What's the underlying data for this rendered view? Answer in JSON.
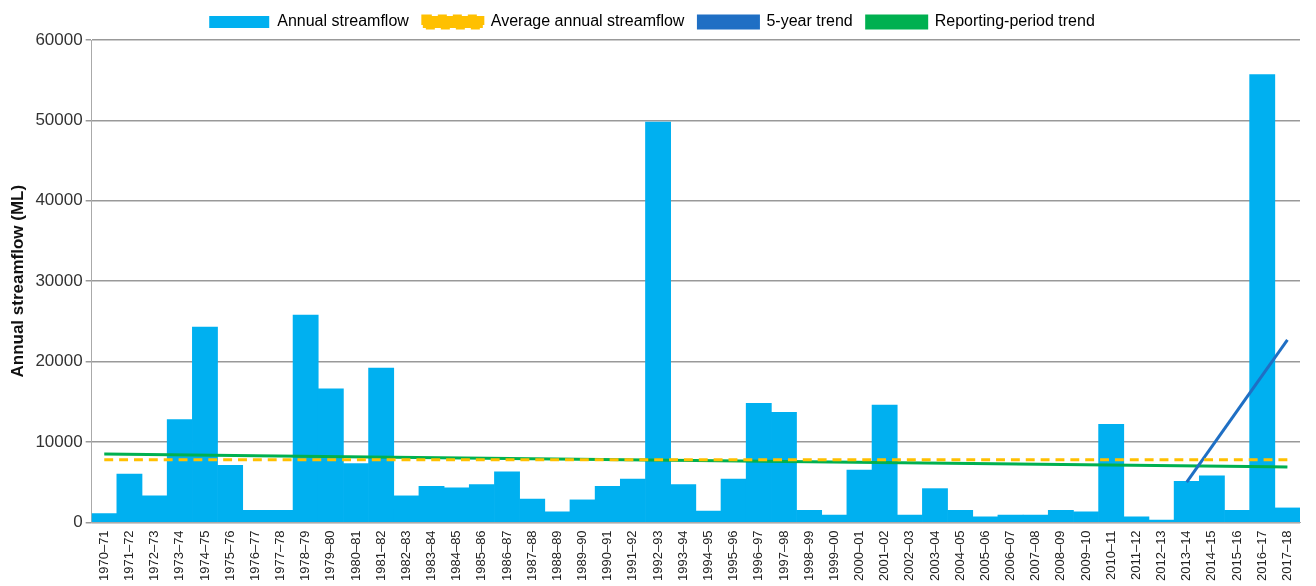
{
  "chart_data": {
    "type": "bar",
    "ylabel": "Annual streamflow (ML)",
    "categories": [
      "1970–71",
      "1971–72",
      "1972–73",
      "1973–74",
      "1974–75",
      "1975–76",
      "1976–77",
      "1977–78",
      "1978–79",
      "1979–80",
      "1980–81",
      "1981–82",
      "1982–83",
      "1983–84",
      "1984–85",
      "1985–86",
      "1986–87",
      "1987–88",
      "1988–89",
      "1989–90",
      "1990–91",
      "1991–92",
      "1992–93",
      "1993–94",
      "1994–95",
      "1995–96",
      "1996–97",
      "1997–98",
      "1998–99",
      "1999–00",
      "2000–01",
      "2001–02",
      "2002–03",
      "2003–04",
      "2004–05",
      "2005–06",
      "2006–07",
      "2007–08",
      "2008–09",
      "2009–10",
      "2010–11",
      "2011–12",
      "2012–13",
      "2013–14",
      "2014–15",
      "2015–16",
      "2016–17",
      "2017–18"
    ],
    "series": [
      {
        "name": "Annual streamflow",
        "color": "#00b0f0",
        "values": [
          1100,
          6000,
          3300,
          12800,
          24300,
          7100,
          1500,
          1500,
          25800,
          16600,
          7300,
          19200,
          3300,
          4500,
          4300,
          4700,
          6300,
          2900,
          1300,
          2800,
          4500,
          5400,
          49800,
          4700,
          1400,
          5400,
          14800,
          13700,
          1500,
          900,
          6500,
          14600,
          900,
          4200,
          1500,
          700,
          900,
          900,
          1500,
          1300,
          12200,
          700,
          300,
          5100,
          5800,
          1500,
          55700,
          1800
        ]
      },
      {
        "name": "Average annual streamflow",
        "type": "line",
        "line_style": "dashed",
        "color": "#ffc000",
        "x": [
          "1970–71",
          "2017–18"
        ],
        "values": [
          7800,
          7800
        ]
      },
      {
        "name": "5-year trend",
        "type": "line",
        "line_style": "solid",
        "color": "#1f6fc4",
        "x": [
          "2013–14",
          "2017–18"
        ],
        "values": [
          5000,
          22700
        ]
      },
      {
        "name": "Reporting-period trend",
        "type": "line",
        "line_style": "solid",
        "color": "#00b050",
        "x": [
          "1970–71",
          "2017–18"
        ],
        "values": [
          8500,
          6900
        ]
      }
    ],
    "ylim": [
      0,
      60000
    ],
    "yticks": [
      0,
      10000,
      20000,
      30000,
      40000,
      50000,
      60000
    ],
    "grid": "y",
    "legend": "top",
    "marker": "none"
  }
}
